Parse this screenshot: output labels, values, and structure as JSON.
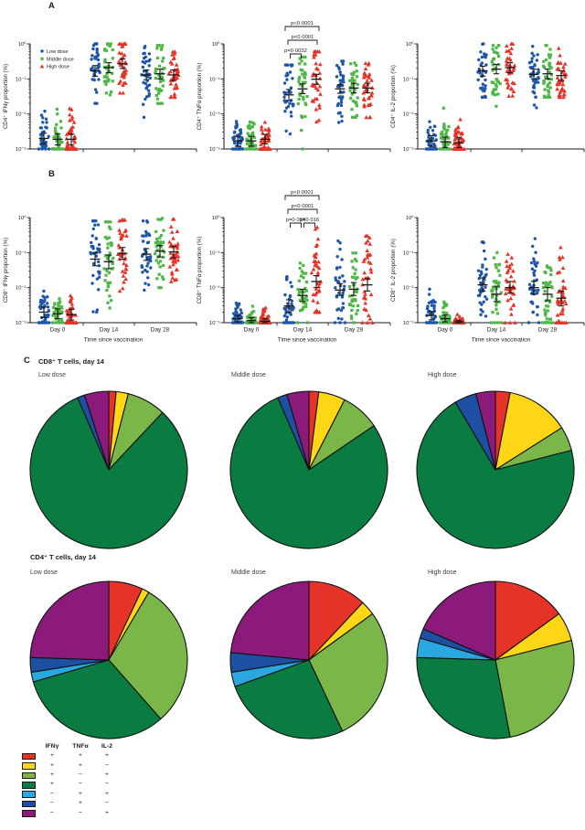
{
  "labels": {
    "panel_a": "A",
    "panel_b": "B",
    "panel_c": "C"
  },
  "axes": {
    "y_tick_labels": [
      "10⁰",
      "10⁻¹",
      "10⁻²",
      "10⁻³"
    ],
    "x_title": "Time since vaccination",
    "x_categories": [
      "Day 0",
      "Day 14",
      "Day 28"
    ]
  },
  "dose_legend": [
    {
      "label": "Low dose",
      "marker": "circle",
      "color": "#1e56a9"
    },
    {
      "label": "Middle dose",
      "marker": "square",
      "color": "#4eb748"
    },
    {
      "label": "High dose",
      "marker": "triangle",
      "color": "#e63328"
    }
  ],
  "slice_colors": [
    "#e63328",
    "#fdd615",
    "#7ab648",
    "#0b7c41",
    "#2ba7df",
    "#1d50a2",
    "#8c1a7b"
  ],
  "phenotype_labels": [
    "IFNγ+ TNFα+ IL-2+",
    "IFNγ+ TNFα+ IL-2−",
    "IFNγ+ TNFα− IL-2+",
    "IFNγ+ TNFα− IL-2−",
    "IFNγ− TNFα+ IL-2+",
    "IFNγ− TNFα+ IL-2−",
    "IFNγ− TNFα− IL-2+"
  ],
  "chart_data": [
    {
      "type": "scatter",
      "id": "cd4_ifng",
      "panel": "A",
      "col": 0,
      "ylabel": "CD4⁺ IFNγ proportion (%)",
      "yscale": "log",
      "ylim": [
        0.001,
        1
      ],
      "n_per_group": 38,
      "show_dose_legend": true,
      "grid": false,
      "stats": {
        "Day 0": {
          "Low dose": {
            "med": 0.002,
            "ci": [
              0.0014,
              0.0028
            ],
            "range": [
              0.001,
              0.012
            ]
          },
          "Middle dose": {
            "med": 0.0019,
            "ci": [
              0.0013,
              0.0027
            ],
            "range": [
              0.001,
              0.015
            ]
          },
          "High dose": {
            "med": 0.0019,
            "ci": [
              0.0013,
              0.0027
            ],
            "range": [
              0.001,
              0.028
            ]
          }
        },
        "Day 14": {
          "Low dose": {
            "med": 0.17,
            "ci": [
              0.12,
              0.24
            ],
            "range": [
              0.02,
              1.0
            ]
          },
          "Middle dose": {
            "med": 0.21,
            "ci": [
              0.15,
              0.29
            ],
            "range": [
              0.02,
              1.0
            ]
          },
          "High dose": {
            "med": 0.27,
            "ci": [
              0.2,
              0.37
            ],
            "range": [
              0.04,
              1.0
            ]
          }
        },
        "Day 28": {
          "Low dose": {
            "med": 0.13,
            "ci": [
              0.095,
              0.18
            ],
            "range": [
              0.008,
              0.85
            ]
          },
          "Middle dose": {
            "med": 0.14,
            "ci": [
              0.1,
              0.19
            ],
            "range": [
              0.02,
              0.9
            ]
          },
          "High dose": {
            "med": 0.13,
            "ci": [
              0.09,
              0.18
            ],
            "range": [
              0.03,
              0.8
            ]
          }
        }
      },
      "comparisons": []
    },
    {
      "type": "scatter",
      "id": "cd4_tnfa",
      "panel": "A",
      "col": 1,
      "ylabel": "CD4⁺ TNFα proportion (%)",
      "yscale": "log",
      "ylim": [
        0.001,
        1
      ],
      "n_per_group": 38,
      "show_dose_legend": false,
      "grid": false,
      "stats": {
        "Day 0": {
          "Low dose": {
            "med": 0.0017,
            "ci": [
              0.0012,
              0.0023
            ],
            "range": [
              0.001,
              0.008
            ]
          },
          "Middle dose": {
            "med": 0.0017,
            "ci": [
              0.0012,
              0.0023
            ],
            "range": [
              0.001,
              0.013
            ]
          },
          "High dose": {
            "med": 0.0019,
            "ci": [
              0.0014,
              0.0026
            ],
            "range": [
              0.001,
              0.011
            ]
          }
        },
        "Day 14": {
          "Low dose": {
            "med": 0.035,
            "ci": [
              0.024,
              0.05
            ],
            "range": [
              0.0012,
              0.25
            ]
          },
          "Middle dose": {
            "med": 0.052,
            "ci": [
              0.038,
              0.072
            ],
            "range": [
              0.001,
              0.42
            ]
          },
          "High dose": {
            "med": 0.098,
            "ci": [
              0.07,
              0.135
            ],
            "range": [
              0.004,
              0.6
            ]
          }
        },
        "Day 28": {
          "Low dose": {
            "med": 0.052,
            "ci": [
              0.039,
              0.069
            ],
            "range": [
              0.005,
              0.32
            ]
          },
          "Middle dose": {
            "med": 0.055,
            "ci": [
              0.04,
              0.075
            ],
            "range": [
              0.008,
              0.7
            ]
          },
          "High dose": {
            "med": 0.055,
            "ci": [
              0.04,
              0.075
            ],
            "range": [
              0.008,
              0.28
            ]
          }
        }
      },
      "comparisons": [
        {
          "at": "Day 14",
          "between": [
            "Low dose",
            "Middle dose"
          ],
          "p": "p=0·0032",
          "level": 0
        },
        {
          "at": "Day 14",
          "between": [
            "Low dose",
            "High dose"
          ],
          "p": "p<0·0001",
          "level": 1
        },
        {
          "at": "Day 14",
          "between": [
            "Low dose",
            "High dose"
          ],
          "p": "p<0·0001",
          "level": 2
        }
      ]
    },
    {
      "type": "scatter",
      "id": "cd4_il2",
      "panel": "A",
      "col": 2,
      "ylabel": "CD4⁺ IL-2 proportion (%)",
      "yscale": "log",
      "ylim": [
        0.001,
        1
      ],
      "n_per_group": 38,
      "show_dose_legend": false,
      "grid": false,
      "stats": {
        "Day 0": {
          "Low dose": {
            "med": 0.0017,
            "ci": [
              0.0012,
              0.0024
            ],
            "range": [
              0.001,
              0.01
            ]
          },
          "Middle dose": {
            "med": 0.0016,
            "ci": [
              0.0011,
              0.0022
            ],
            "range": [
              0.001,
              0.016
            ]
          },
          "High dose": {
            "med": 0.0015,
            "ci": [
              0.0011,
              0.0021
            ],
            "range": [
              0.001,
              0.007
            ]
          }
        },
        "Day 14": {
          "Low dose": {
            "med": 0.17,
            "ci": [
              0.12,
              0.23
            ],
            "range": [
              0.03,
              1.0
            ]
          },
          "Middle dose": {
            "med": 0.19,
            "ci": [
              0.14,
              0.26
            ],
            "range": [
              0.01,
              0.9
            ]
          },
          "High dose": {
            "med": 0.21,
            "ci": [
              0.15,
              0.29
            ],
            "range": [
              0.015,
              1.0
            ]
          }
        },
        "Day 28": {
          "Low dose": {
            "med": 0.135,
            "ci": [
              0.1,
              0.19
            ],
            "range": [
              0.015,
              0.85
            ]
          },
          "Middle dose": {
            "med": 0.14,
            "ci": [
              0.1,
              0.19
            ],
            "range": [
              0.03,
              0.9
            ]
          },
          "High dose": {
            "med": 0.125,
            "ci": [
              0.09,
              0.17
            ],
            "range": [
              0.03,
              0.75
            ]
          }
        }
      },
      "comparisons": []
    },
    {
      "type": "scatter",
      "id": "cd8_ifng",
      "panel": "B",
      "col": 0,
      "ylabel": "CD8⁺ IFNγ proportion (%)",
      "yscale": "log",
      "ylim": [
        0.001,
        1
      ],
      "n_per_group": 38,
      "show_dose_legend": false,
      "grid": false,
      "stats": {
        "Day 0": {
          "Low dose": {
            "med": 0.002,
            "ci": [
              0.0014,
              0.0028
            ],
            "range": [
              0.001,
              0.013
            ]
          },
          "Middle dose": {
            "med": 0.0018,
            "ci": [
              0.0013,
              0.0025
            ],
            "range": [
              0.001,
              0.009
            ]
          },
          "High dose": {
            "med": 0.0017,
            "ci": [
              0.0012,
              0.0024
            ],
            "range": [
              0.001,
              0.011
            ]
          }
        },
        "Day 14": {
          "Low dose": {
            "med": 0.065,
            "ci": [
              0.042,
              0.1
            ],
            "range": [
              0.002,
              0.8
            ]
          },
          "Middle dose": {
            "med": 0.055,
            "ci": [
              0.035,
              0.085
            ],
            "range": [
              0.0015,
              0.75
            ]
          },
          "High dose": {
            "med": 0.095,
            "ci": [
              0.065,
              0.14
            ],
            "range": [
              0.008,
              0.85
            ]
          }
        },
        "Day 28": {
          "Low dose": {
            "med": 0.09,
            "ci": [
              0.06,
              0.13
            ],
            "range": [
              0.006,
              0.8
            ]
          },
          "Middle dose": {
            "med": 0.11,
            "ci": [
              0.075,
              0.16
            ],
            "range": [
              0.01,
              0.95
            ]
          },
          "High dose": {
            "med": 0.105,
            "ci": [
              0.07,
              0.15
            ],
            "range": [
              0.015,
              0.9
            ]
          }
        }
      },
      "comparisons": []
    },
    {
      "type": "scatter",
      "id": "cd8_tnfa",
      "panel": "B",
      "col": 1,
      "ylabel": "CD8⁺ TNFα proportion (%)",
      "yscale": "log",
      "ylim": [
        0.001,
        1
      ],
      "n_per_group": 38,
      "show_dose_legend": false,
      "grid": false,
      "stats": {
        "Day 0": {
          "Low dose": {
            "med": 0.0013,
            "ci": [
              0.00105,
              0.0016
            ],
            "range": [
              0.001,
              0.009
            ]
          },
          "Middle dose": {
            "med": 0.00115,
            "ci": [
              0.001,
              0.0014
            ],
            "range": [
              0.001,
              0.003
            ]
          },
          "High dose": {
            "med": 0.0011,
            "ci": [
              0.001,
              0.0013
            ],
            "range": [
              0.001,
              0.004
            ]
          }
        },
        "Day 14": {
          "Low dose": {
            "med": 0.003,
            "ci": [
              0.002,
              0.0045
            ],
            "range": [
              0.001,
              0.08
            ]
          },
          "Middle dose": {
            "med": 0.006,
            "ci": [
              0.004,
              0.009
            ],
            "range": [
              0.001,
              0.05
            ]
          },
          "High dose": {
            "med": 0.015,
            "ci": [
              0.01,
              0.022
            ],
            "range": [
              0.002,
              0.55
            ]
          }
        },
        "Day 28": {
          "Low dose": {
            "med": 0.0085,
            "ci": [
              0.006,
              0.013
            ],
            "range": [
              0.001,
              0.35
            ]
          },
          "Middle dose": {
            "med": 0.009,
            "ci": [
              0.006,
              0.014
            ],
            "range": [
              0.001,
              0.15
            ]
          },
          "High dose": {
            "med": 0.012,
            "ci": [
              0.008,
              0.018
            ],
            "range": [
              0.001,
              0.3
            ]
          }
        }
      },
      "comparisons": [
        {
          "at": "Day 14",
          "between": [
            "Low dose",
            "Middle dose"
          ],
          "p": "p=0·016",
          "level": 0
        },
        {
          "at": "Day 14",
          "between": [
            "Middle dose",
            "High dose"
          ],
          "p": "p=0·016",
          "level": 0
        },
        {
          "at": "Day 14",
          "between": [
            "Low dose",
            "High dose"
          ],
          "p": "p<0·0001",
          "level": 1
        },
        {
          "at": "Day 14",
          "between": [
            "Low dose",
            "High dose"
          ],
          "p": "p<0·0001",
          "level": 2
        }
      ]
    },
    {
      "type": "scatter",
      "id": "cd8_il2",
      "panel": "B",
      "col": 2,
      "ylabel": "CD8⁺ IL-2 proportion (%)",
      "yscale": "log",
      "ylim": [
        0.001,
        1
      ],
      "n_per_group": 38,
      "show_dose_legend": false,
      "grid": false,
      "stats": {
        "Day 0": {
          "Low dose": {
            "med": 0.0016,
            "ci": [
              0.0012,
              0.0021
            ],
            "range": [
              0.001,
              0.02
            ]
          },
          "Middle dose": {
            "med": 0.0013,
            "ci": [
              0.00105,
              0.00165
            ],
            "range": [
              0.001,
              0.01
            ]
          },
          "High dose": {
            "med": 0.00105,
            "ci": [
              0.001,
              0.00115
            ],
            "range": [
              0.001,
              0.0022
            ]
          }
        },
        "Day 14": {
          "Low dose": {
            "med": 0.012,
            "ci": [
              0.008,
              0.019
            ],
            "range": [
              0.001,
              0.2
            ]
          },
          "Middle dose": {
            "med": 0.0065,
            "ci": [
              0.004,
              0.011
            ],
            "range": [
              0.001,
              0.1
            ]
          },
          "High dose": {
            "med": 0.01,
            "ci": [
              0.007,
              0.015
            ],
            "range": [
              0.001,
              0.15
            ]
          }
        },
        "Day 28": {
          "Low dose": {
            "med": 0.01,
            "ci": [
              0.0065,
              0.015
            ],
            "range": [
              0.001,
              0.25
            ]
          },
          "Middle dose": {
            "med": 0.0065,
            "ci": [
              0.0042,
              0.01
            ],
            "range": [
              0.001,
              0.08
            ]
          },
          "High dose": {
            "med": 0.005,
            "ci": [
              0.003,
              0.008
            ],
            "range": [
              0.001,
              0.22
            ]
          }
        }
      },
      "comparisons": []
    },
    {
      "type": "pie",
      "section": 0,
      "dose_index": 0,
      "group": "CD8⁺ T cells, day 14",
      "dose": "Low dose",
      "values": [
        1.5,
        2.5,
        8,
        81.5,
        0,
        1.5,
        5
      ]
    },
    {
      "type": "pie",
      "section": 0,
      "dose_index": 1,
      "group": "CD8⁺ T cells, day 14",
      "dose": "Middle dose",
      "values": [
        2,
        5.5,
        8,
        78,
        0,
        2,
        4.5
      ]
    },
    {
      "type": "pie",
      "section": 0,
      "dose_index": 2,
      "group": "CD8⁺ T cells, day 14",
      "dose": "High dose",
      "values": [
        3,
        13,
        5,
        70.5,
        0,
        4.5,
        4
      ]
    },
    {
      "type": "pie",
      "section": 1,
      "dose_index": 0,
      "group": "CD4⁺ T cells, day 14",
      "dose": "Low dose",
      "values": [
        7,
        1.5,
        30,
        32,
        2,
        3,
        24.5
      ]
    },
    {
      "type": "pie",
      "section": 1,
      "dose_index": 1,
      "group": "CD4⁺ T cells, day 14",
      "dose": "Middle dose",
      "values": [
        12,
        3,
        28,
        26.5,
        3,
        4,
        23.5
      ]
    },
    {
      "type": "pie",
      "section": 1,
      "dose_index": 2,
      "group": "CD4⁺ T cells, day 14",
      "dose": "High dose",
      "values": [
        15,
        6,
        26,
        28.5,
        4,
        2,
        18.5
      ]
    }
  ],
  "pies": {
    "sections": [
      {
        "title": "CD8⁺ T cells, day 14",
        "doses": [
          "Low dose",
          "Middle dose",
          "High dose"
        ]
      },
      {
        "title": "CD4⁺ T cells, day 14",
        "doses": [
          "Low dose",
          "Middle dose",
          "High dose"
        ]
      }
    ]
  },
  "legend_table": {
    "headers": [
      "IFNγ",
      "TNFα",
      "IL-2"
    ],
    "rows": [
      {
        "color": "#e63328",
        "signs": [
          "+",
          "+",
          "+"
        ]
      },
      {
        "color": "#fdd615",
        "signs": [
          "+",
          "+",
          "−"
        ]
      },
      {
        "color": "#7ab648",
        "signs": [
          "+",
          "−",
          "+"
        ]
      },
      {
        "color": "#0b7c41",
        "signs": [
          "+",
          "−",
          "−"
        ]
      },
      {
        "color": "#2ba7df",
        "signs": [
          "−",
          "+",
          "+"
        ]
      },
      {
        "color": "#1d50a2",
        "signs": [
          "−",
          "+",
          "−"
        ]
      },
      {
        "color": "#8c1a7b",
        "signs": [
          "−",
          "−",
          "+"
        ]
      }
    ]
  }
}
